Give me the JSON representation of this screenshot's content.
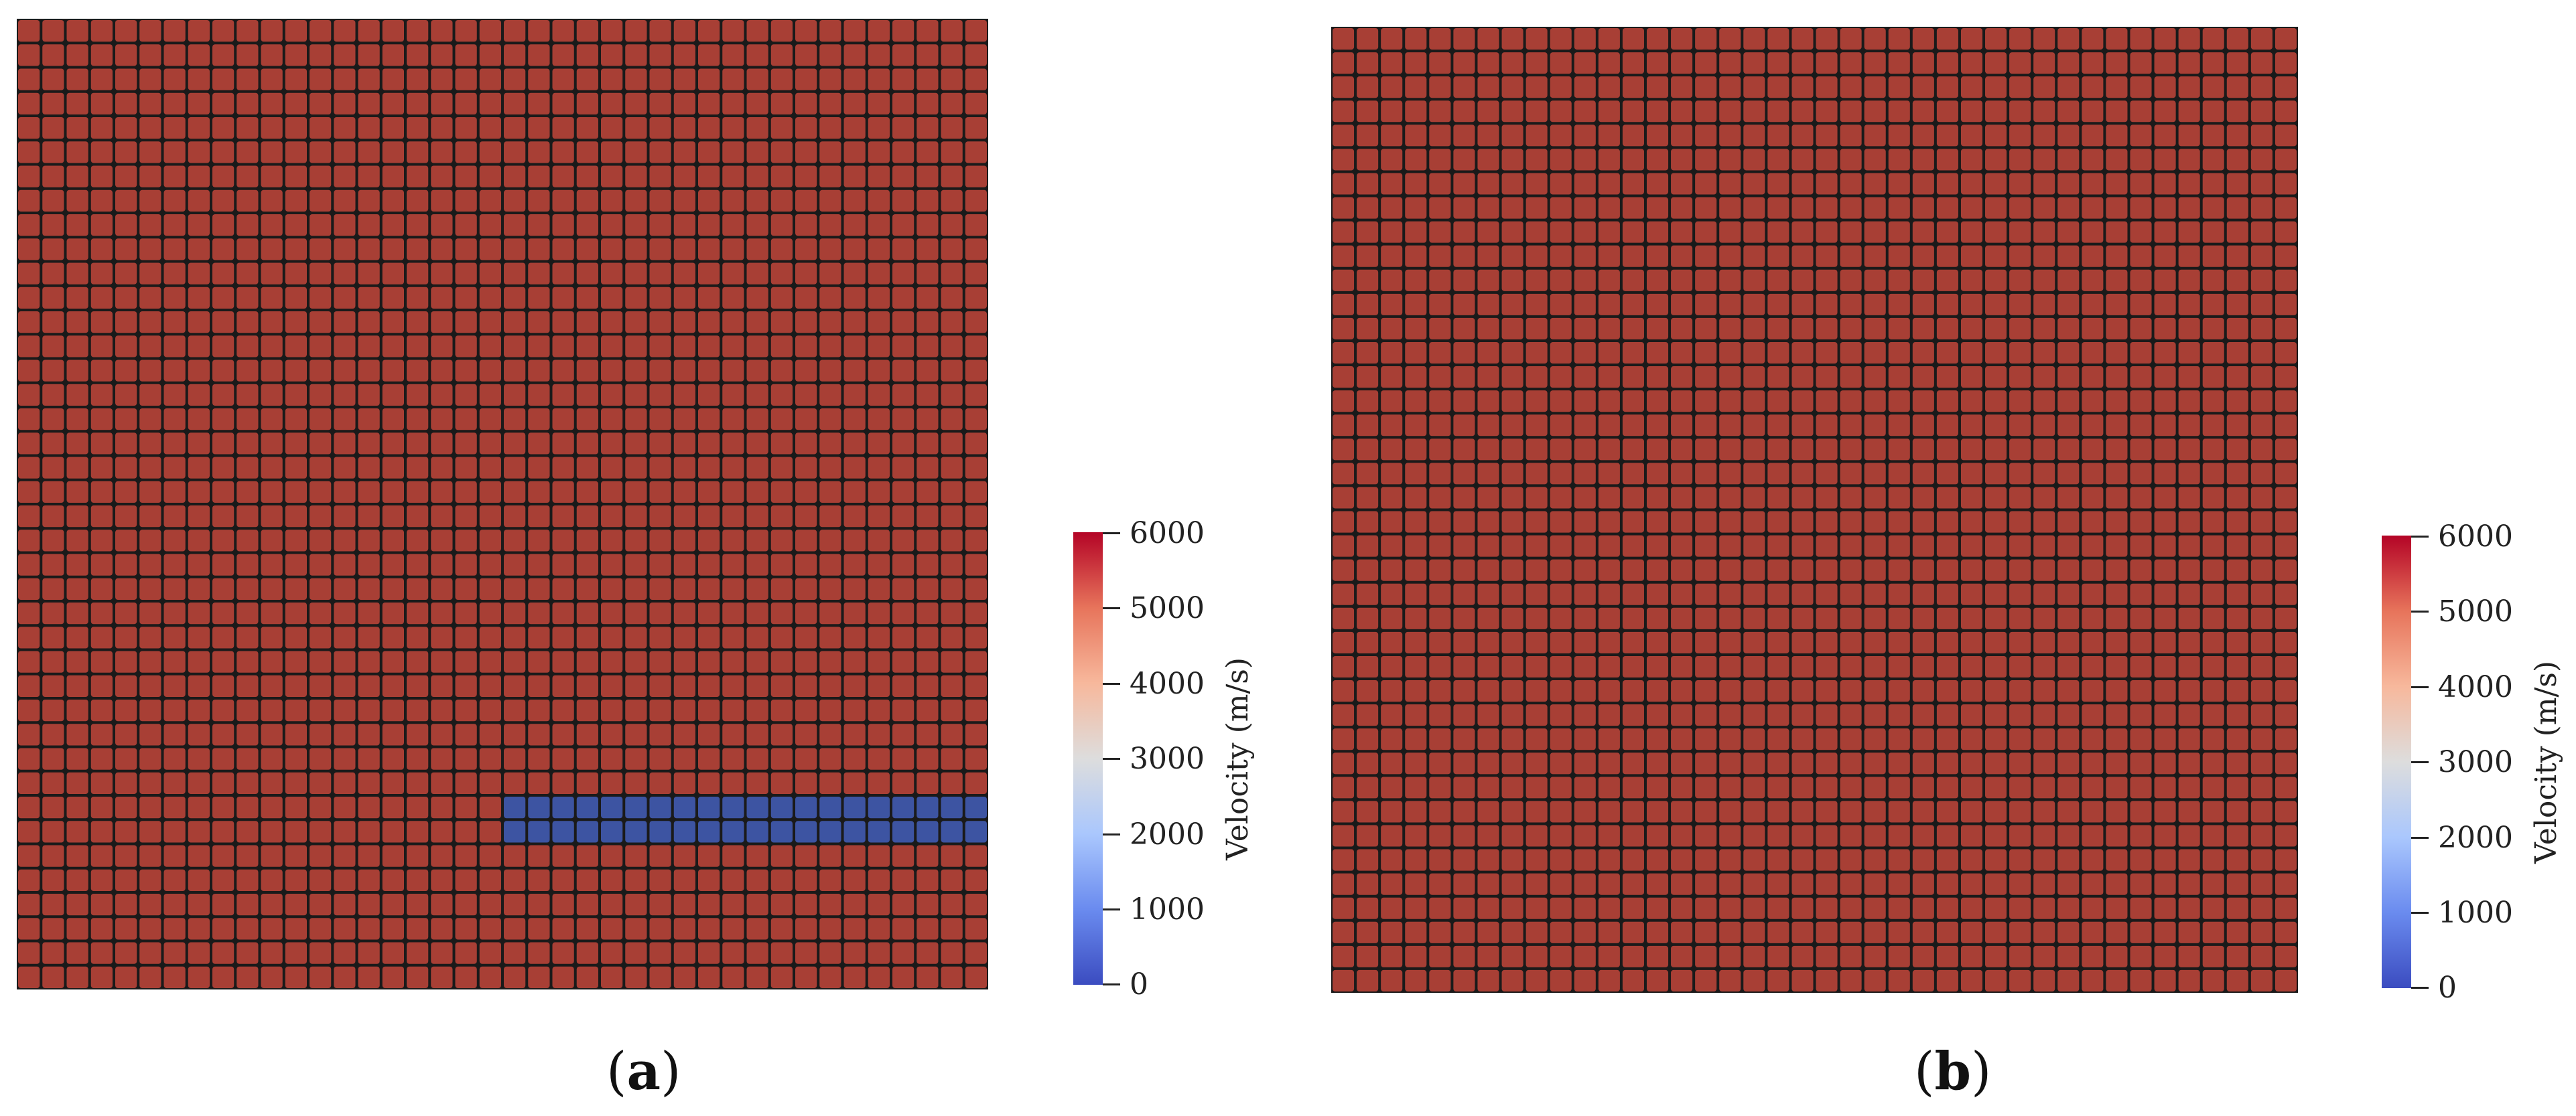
{
  "panels": [
    {
      "id": "a",
      "label_open": "(",
      "label_letter": "a",
      "label_close": ")",
      "mesh": {
        "cols": 40,
        "rows": 40,
        "background_velocity": 6000,
        "anomaly": {
          "velocity": 0,
          "col_start": 20,
          "col_end": 39,
          "row_start": 32,
          "row_end": 33
        }
      },
      "colorbar": {
        "title": "Velocity (m/s)",
        "ticks": [
          "6000",
          "5000",
          "4000",
          "3000",
          "2000",
          "1000",
          "0"
        ],
        "min": 0,
        "max": 6000
      }
    },
    {
      "id": "b",
      "label_open": "(",
      "label_letter": "b",
      "label_close": ")",
      "mesh": {
        "cols": 40,
        "rows": 40,
        "background_velocity": 6000,
        "anomaly": null
      },
      "colorbar": {
        "title": "Velocity (m/s)",
        "ticks": [
          "6000",
          "5000",
          "4000",
          "3000",
          "2000",
          "1000",
          "0"
        ],
        "min": 0,
        "max": 6000
      }
    }
  ],
  "colors": {
    "high_velocity": "#a83f35",
    "low_velocity": "#3d54a2",
    "grid_line": "#1a1a1a"
  }
}
